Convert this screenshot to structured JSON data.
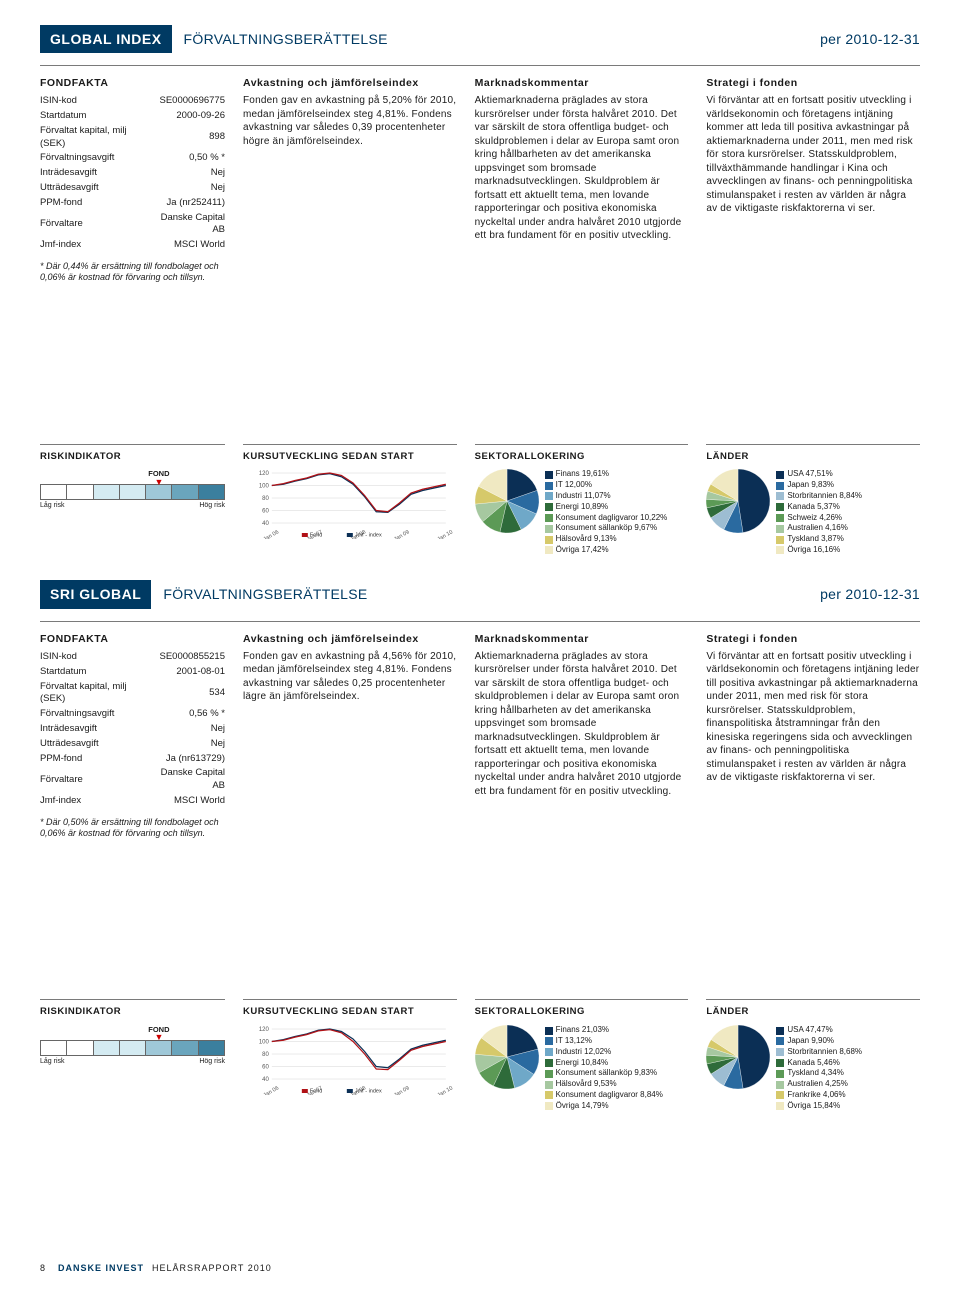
{
  "sections": [
    {
      "banner": {
        "title": "GLOBAL INDEX",
        "subtitle": "FÖRVALTNINGSBERÄTTELSE",
        "date": "per 2010-12-31"
      },
      "facts": {
        "head": "FONDFAKTA",
        "rows": [
          [
            "ISIN-kod",
            "SE0000696775"
          ],
          [
            "Startdatum",
            "2000-09-26"
          ],
          [
            "Förvaltat kapital, milj (SEK)",
            "898"
          ],
          [
            "Förvaltningsavgift",
            "0,50 % *"
          ],
          [
            "Inträdesavgift",
            "Nej"
          ],
          [
            "Utträdesavgift",
            "Nej"
          ],
          [
            "PPM-fond",
            "Ja (nr252411)"
          ],
          [
            "Förvaltare",
            "Danske Capital AB"
          ],
          [
            "Jmf-index",
            "MSCI World"
          ]
        ],
        "foot": "* Där 0,44% är ersättning till fondbolaget och 0,06% är kostnad för förvaring och tillsyn."
      },
      "cols": [
        {
          "head": "Avkastning och jämförelseindex",
          "body": "Fonden gav en avkastning på 5,20% för 2010, medan jämförelseindex steg 4,81%. Fondens avkastning var således 0,39 procentenheter högre än jämförelseindex."
        },
        {
          "head": "Marknadskommentar",
          "body": "Aktiemarknaderna präglades av stora kursrörelser under första halvåret 2010. Det var särskilt de stora offentliga budget- och skuldproblemen i delar av Europa samt oron kring hållbarheten av det amerikanska uppsvinget som bromsade marknadsutvecklingen. Skuldproblem är fortsatt ett aktuellt tema, men lovande rapporteringar och positiva ekonomiska nyckeltal under andra halvåret 2010 utgjorde ett bra fundament för en positiv utveckling."
        },
        {
          "head": "Strategi i fonden",
          "body": "Vi förväntar att en fortsatt positiv utveckling i världsekonomin och företagens intjäning kommer att leda till positiva avkastningar på aktiemarknaderna under 2011, men med risk för stora kursrörelser. Statsskuldproblem, tillväxthämmande handlingar i Kina och avvecklingen av finans- och penningpolitiska stimulanspaket i resten av världen är några av de viktigaste riskfaktorerna vi ser."
        }
      ],
      "widgets": {
        "risk": {
          "head": "RISKINDIKATOR",
          "low": "Låg\nrisk",
          "high": "Hög\nrisk",
          "fond_label": "FOND",
          "cells": [
            "#ffffff",
            "#ffffff",
            "#d4ebf2",
            "#d4ebf2",
            "#9fc8d8",
            "#6aa5bd",
            "#3b7f9e"
          ],
          "pointer_index": 4
        },
        "line": {
          "head": "KURSUTVECKLING SEDAN START",
          "ylabels": [
            "120",
            "100",
            "80",
            "60",
            "40"
          ],
          "xlabels": [
            "Jan 06",
            "Jan 07",
            "Jan 08",
            "Jan 09",
            "Jan 10"
          ],
          "legend": [
            "Fond",
            "Jmf - index"
          ],
          "fond_color": "#b01116",
          "idx_color": "#0b2f55",
          "fond": [
            100,
            103,
            108,
            112,
            118,
            120,
            116,
            104,
            84,
            60,
            58,
            72,
            88,
            94,
            98,
            102
          ],
          "idx": [
            100,
            102,
            107,
            111,
            117,
            119,
            114,
            102,
            82,
            58,
            57,
            70,
            86,
            92,
            96,
            100
          ]
        },
        "sector": {
          "head": "SEKTORALLOKERING",
          "items": [
            {
              "label": "Finans",
              "pct": "19,61%",
              "color": "#0b2f55"
            },
            {
              "label": "IT",
              "pct": "12,00%",
              "color": "#2a6aa0"
            },
            {
              "label": "Industri",
              "pct": "11,07%",
              "color": "#6fa8c8"
            },
            {
              "label": "Energi",
              "pct": "10,89%",
              "color": "#2e6b3a"
            },
            {
              "label": "Konsument dagligvaror",
              "pct": "10,22%",
              "color": "#5c9a56"
            },
            {
              "label": "Konsument sällanköp",
              "pct": "9,67%",
              "color": "#a6c8a0"
            },
            {
              "label": "Hälsovård",
              "pct": "9,13%",
              "color": "#d6c96a"
            },
            {
              "label": "Övriga",
              "pct": "17,42%",
              "color": "#f0e9c2"
            }
          ],
          "values": [
            19.61,
            12.0,
            11.07,
            10.89,
            10.22,
            9.67,
            9.13,
            17.42
          ]
        },
        "country": {
          "head": "LÄNDER",
          "items": [
            {
              "label": "USA",
              "pct": "47,51%",
              "color": "#0b2f55"
            },
            {
              "label": "Japan",
              "pct": "9,83%",
              "color": "#2a6aa0"
            },
            {
              "label": "Storbritannien",
              "pct": "8,84%",
              "color": "#9dbdd2"
            },
            {
              "label": "Kanada",
              "pct": "5,37%",
              "color": "#2e6b3a"
            },
            {
              "label": "Schweiz",
              "pct": "4,26%",
              "color": "#5c9a56"
            },
            {
              "label": "Australien",
              "pct": "4,16%",
              "color": "#a6c8a0"
            },
            {
              "label": "Tyskland",
              "pct": "3,87%",
              "color": "#d6c96a"
            },
            {
              "label": "Övriga",
              "pct": "16,16%",
              "color": "#f0e9c2"
            }
          ],
          "values": [
            47.51,
            9.83,
            8.84,
            5.37,
            4.26,
            4.16,
            3.87,
            16.16
          ]
        }
      }
    },
    {
      "banner": {
        "title": "SRI GLOBAL",
        "subtitle": "FÖRVALTNINGSBERÄTTELSE",
        "date": "per 2010-12-31"
      },
      "facts": {
        "head": "FONDFAKTA",
        "rows": [
          [
            "ISIN-kod",
            "SE0000855215"
          ],
          [
            "Startdatum",
            "2001-08-01"
          ],
          [
            "Förvaltat kapital, milj (SEK)",
            "534"
          ],
          [
            "Förvaltningsavgift",
            "0,56 % *"
          ],
          [
            "Inträdesavgift",
            "Nej"
          ],
          [
            "Utträdesavgift",
            "Nej"
          ],
          [
            "PPM-fond",
            "Ja (nr613729)"
          ],
          [
            "Förvaltare",
            "Danske Capital AB"
          ],
          [
            "Jmf-index",
            "MSCI World"
          ]
        ],
        "foot": "* Där 0,50% är ersättning till fondbolaget och 0,06% är kostnad för förvaring och tillsyn."
      },
      "cols": [
        {
          "head": "Avkastning och jämförelseindex",
          "body": "Fonden gav en avkastning på 4,56% för 2010, medan jämförelseindex steg 4,81%. Fondens avkastning var således 0,25 procentenheter lägre än jämförelseindex."
        },
        {
          "head": "Marknadskommentar",
          "body": "Aktiemarknaderna präglades av stora kursrörelser under första halvåret 2010. Det var särskilt de stora offentliga budget- och skuldproblemen i delar av Europa samt oron kring hållbarheten av det amerikanska uppsvinget som bromsade marknadsutvecklingen. Skuldproblem är fortsatt ett aktuellt tema, men lovande rapporteringar och positiva ekonomiska nyckeltal under andra halvåret 2010 utgjorde ett bra fundament för en positiv utveckling."
        },
        {
          "head": "Strategi i fonden",
          "body": "Vi förväntar att en fortsatt positiv utveckling i världsekonomin och företagens intjäning leder till positiva avkastningar på aktiemarknaderna under 2011, men med risk för stora kursrörelser. Statsskuldproblem, finanspolitiska åtstramningar från den kinesiska regeringens sida och avvecklingen av finans- och penningpolitiska stimulanspaket i resten av världen är några av de viktigaste riskfaktorerna vi ser."
        }
      ],
      "widgets": {
        "risk": {
          "head": "RISKINDIKATOR",
          "low": "Låg\nrisk",
          "high": "Hög\nrisk",
          "fond_label": "FOND",
          "cells": [
            "#ffffff",
            "#ffffff",
            "#d4ebf2",
            "#d4ebf2",
            "#9fc8d8",
            "#6aa5bd",
            "#3b7f9e"
          ],
          "pointer_index": 4
        },
        "line": {
          "head": "KURSUTVECKLING SEDAN START",
          "ylabels": [
            "120",
            "100",
            "80",
            "60",
            "40"
          ],
          "xlabels": [
            "Jan 06",
            "Jan 07",
            "Jan 08",
            "Jan 09",
            "Jan 10"
          ],
          "legend": [
            "Fond",
            "Jmf - index"
          ],
          "fond_color": "#b01116",
          "idx_color": "#0b2f55",
          "fond": [
            100,
            102,
            107,
            111,
            117,
            119,
            114,
            100,
            80,
            56,
            55,
            70,
            86,
            92,
            96,
            100
          ],
          "idx": [
            100,
            103,
            108,
            112,
            118,
            120,
            116,
            104,
            84,
            60,
            58,
            72,
            88,
            94,
            98,
            102
          ]
        },
        "sector": {
          "head": "SEKTORALLOKERING",
          "items": [
            {
              "label": "Finans",
              "pct": "21,03%",
              "color": "#0b2f55"
            },
            {
              "label": "IT",
              "pct": "13,12%",
              "color": "#2a6aa0"
            },
            {
              "label": "Industri",
              "pct": "12,02%",
              "color": "#6fa8c8"
            },
            {
              "label": "Energi",
              "pct": "10,84%",
              "color": "#2e6b3a"
            },
            {
              "label": "Konsument sällanköp",
              "pct": "9,83%",
              "color": "#5c9a56"
            },
            {
              "label": "Hälsovård",
              "pct": "9,53%",
              "color": "#a6c8a0"
            },
            {
              "label": "Konsument dagligvaror",
              "pct": "8,84%",
              "color": "#d6c96a"
            },
            {
              "label": "Övriga",
              "pct": "14,79%",
              "color": "#f0e9c2"
            }
          ],
          "values": [
            21.03,
            13.12,
            12.02,
            10.84,
            9.83,
            9.53,
            8.84,
            14.79
          ]
        },
        "country": {
          "head": "LÄNDER",
          "items": [
            {
              "label": "USA",
              "pct": "47,47%",
              "color": "#0b2f55"
            },
            {
              "label": "Japan",
              "pct": "9,90%",
              "color": "#2a6aa0"
            },
            {
              "label": "Storbritannien",
              "pct": "8,68%",
              "color": "#9dbdd2"
            },
            {
              "label": "Kanada",
              "pct": "5,46%",
              "color": "#2e6b3a"
            },
            {
              "label": "Tyskland",
              "pct": "4,34%",
              "color": "#5c9a56"
            },
            {
              "label": "Australien",
              "pct": "4,25%",
              "color": "#a6c8a0"
            },
            {
              "label": "Frankrike",
              "pct": "4,06%",
              "color": "#d6c96a"
            },
            {
              "label": "Övriga",
              "pct": "15,84%",
              "color": "#f0e9c2"
            }
          ],
          "values": [
            47.47,
            9.9,
            8.68,
            5.46,
            4.34,
            4.25,
            4.06,
            15.84
          ]
        }
      }
    }
  ],
  "footer": {
    "pageno": "8",
    "brand": "DANSKE INVEST",
    "report": "HELÅRSRAPPORT 2010"
  }
}
